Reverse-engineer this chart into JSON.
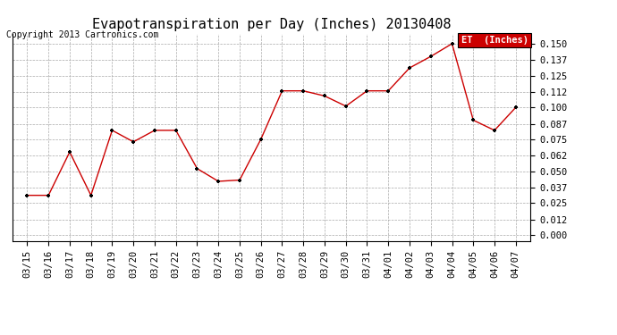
{
  "title": "Evapotranspiration per Day (Inches) 20130408",
  "copyright": "Copyright 2013 Cartronics.com",
  "legend_label": "ET  (Inches)",
  "legend_bg": "#cc0000",
  "legend_text_color": "#ffffff",
  "line_color": "#cc0000",
  "marker_color": "#000000",
  "bg_color": "#ffffff",
  "grid_color": "#aaaaaa",
  "dates": [
    "03/15",
    "03/16",
    "03/17",
    "03/18",
    "03/19",
    "03/20",
    "03/21",
    "03/22",
    "03/23",
    "03/24",
    "03/25",
    "03/26",
    "03/27",
    "03/28",
    "03/29",
    "03/30",
    "03/31",
    "04/01",
    "04/02",
    "04/03",
    "04/04",
    "04/05",
    "04/06",
    "04/07"
  ],
  "values": [
    0.031,
    0.031,
    0.065,
    0.031,
    0.082,
    0.073,
    0.082,
    0.082,
    0.052,
    0.042,
    0.043,
    0.075,
    0.113,
    0.113,
    0.109,
    0.101,
    0.113,
    0.113,
    0.131,
    0.14,
    0.15,
    0.09,
    0.082,
    0.1
  ],
  "yticks": [
    0.0,
    0.012,
    0.025,
    0.037,
    0.05,
    0.062,
    0.075,
    0.087,
    0.1,
    0.112,
    0.125,
    0.137,
    0.15
  ],
  "ytick_labels": [
    "0.000",
    "0.012",
    "0.025",
    "0.037",
    "0.050",
    "0.062",
    "0.075",
    "0.087",
    "0.100",
    "0.112",
    "0.125",
    "0.137",
    "0.150"
  ],
  "ylim": [
    -0.005,
    0.158
  ],
  "title_fontsize": 11,
  "axis_fontsize": 7.5,
  "copyright_fontsize": 7
}
